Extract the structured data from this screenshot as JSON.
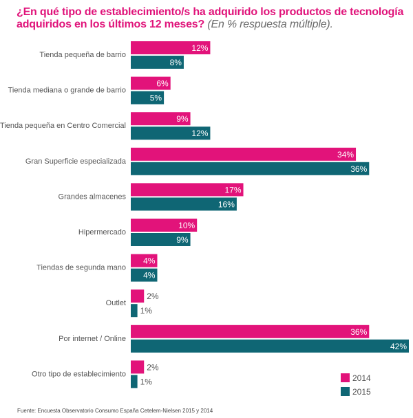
{
  "title": {
    "main": "¿En qué tipo de establecimiento/s ha adquirido los productos de tecnología adquiridos en los últimos 12 meses?",
    "sub": "(En % respuesta múltiple)."
  },
  "colors": {
    "series_2014": "#e2137a",
    "series_2015": "#0f6674"
  },
  "chart_data": {
    "type": "bar",
    "orientation": "horizontal",
    "title": "¿En qué tipo de establecimiento/s ha adquirido los productos de tecnología adquiridos en los últimos 12 meses? (En % respuesta múltiple).",
    "xlabel": "",
    "ylabel": "",
    "xlim": [
      0,
      42
    ],
    "grid": false,
    "legend_position": "bottom-right",
    "categories": [
      "Tienda pequeña de barrio",
      "Tienda mediana o grande de barrio",
      "Tienda pequeña en Centro Comercial",
      "Gran Superficie especializada",
      "Grandes almacenes",
      "Hipermercado",
      "Tiendas de segunda mano",
      "Outlet",
      "Por internet / Online",
      "Otro tipo de establecimiento"
    ],
    "series": [
      {
        "name": "2014",
        "values": [
          12,
          6,
          9,
          34,
          17,
          10,
          4,
          2,
          36,
          2
        ]
      },
      {
        "name": "2015",
        "values": [
          8,
          5,
          12,
          36,
          16,
          9,
          4,
          1,
          42,
          1
        ]
      }
    ],
    "value_suffix": "%"
  },
  "legend": [
    {
      "label": "2014"
    },
    {
      "label": "2015"
    }
  ],
  "footer": "Fuente: Encuesta Observatorio Consumo España Cetelem-Nielsen 2015 y 2014"
}
